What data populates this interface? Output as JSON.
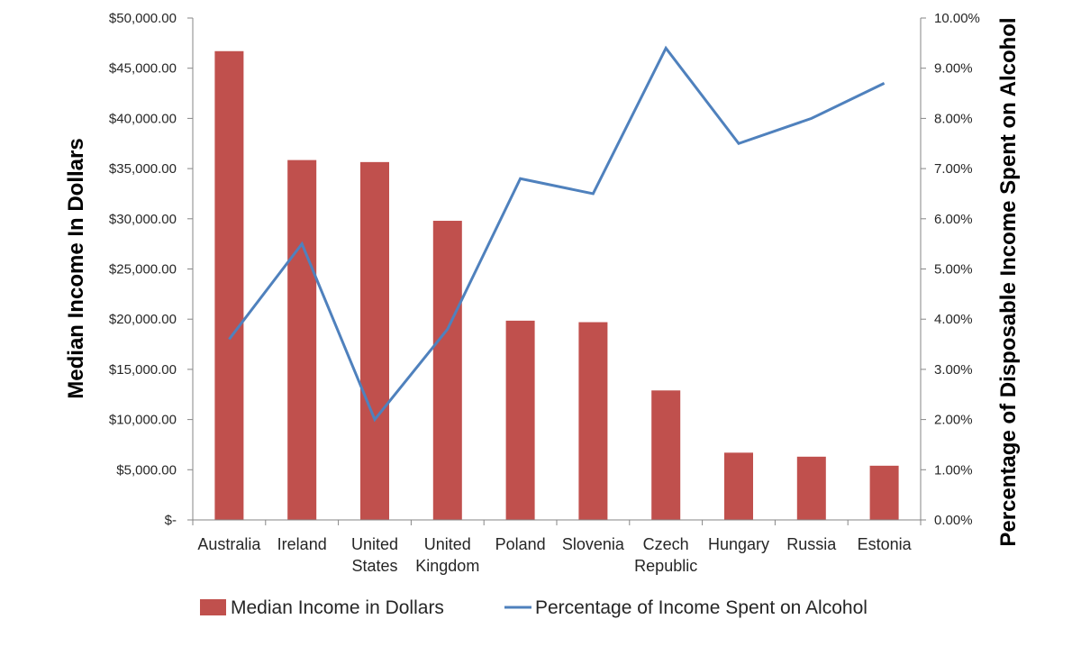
{
  "chart_data": {
    "type": "bar",
    "categories": [
      [
        "Australia"
      ],
      [
        "Ireland"
      ],
      [
        "United",
        "States"
      ],
      [
        "United",
        "Kingdom"
      ],
      [
        "Poland"
      ],
      [
        "Slovenia"
      ],
      [
        "Czech",
        "Republic"
      ],
      [
        "Hungary"
      ],
      [
        "Russia"
      ],
      [
        "Estonia"
      ]
    ],
    "series": [
      {
        "name": "Median Income in Dollars",
        "type": "bar",
        "axis": "left",
        "color": "#C0504D",
        "values": [
          46700,
          35850,
          35650,
          29800,
          19850,
          19700,
          12900,
          6700,
          6300,
          5400
        ]
      },
      {
        "name": "Percentage of Income Spent on Alcohol",
        "type": "line",
        "axis": "right",
        "color": "#4F81BD",
        "values": [
          3.6,
          5.5,
          2.0,
          3.8,
          6.8,
          6.5,
          9.4,
          7.5,
          8.0,
          8.7
        ]
      }
    ],
    "ylabel": "Median Income In Dollars",
    "y2label": "Percentage of Disposable Income Spent on Alcohol",
    "ylim": [
      0,
      50000
    ],
    "y2lim": [
      0,
      10
    ],
    "yticks": [
      "$-",
      "$5,000.00",
      "$10,000.00",
      "$15,000.00",
      "$20,000.00",
      "$25,000.00",
      "$30,000.00",
      "$35,000.00",
      "$40,000.00",
      "$45,000.00",
      "$50,000.00"
    ],
    "y2ticks": [
      "0.00%",
      "1.00%",
      "2.00%",
      "3.00%",
      "4.00%",
      "5.00%",
      "6.00%",
      "7.00%",
      "8.00%",
      "9.00%",
      "10.00%"
    ],
    "grid": false,
    "legend": "bottom"
  }
}
